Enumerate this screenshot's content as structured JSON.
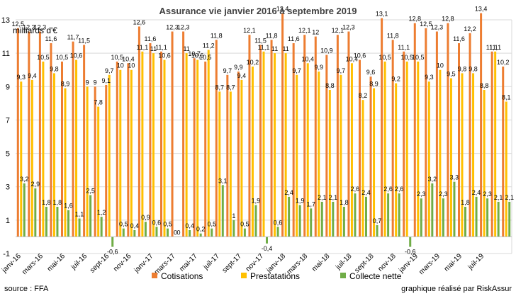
{
  "chart_data": {
    "type": "bar",
    "title": "Assurance vie janvier 2016 à septembre 2019",
    "ylabel": "milliards d'€",
    "ylim": [
      -1,
      13
    ],
    "yticks": [
      -1,
      1,
      3,
      5,
      7,
      9,
      11,
      13
    ],
    "grid": true,
    "legend_position": "bottom-center",
    "source": "source : FFA",
    "credit": "graphique réalisé par RiskAssur",
    "categories": [
      "janv-16",
      "févr-16",
      "mars-16",
      "avr-16",
      "mai-16",
      "juin-16",
      "juil-16",
      "août-16",
      "sept-16",
      "oct-16",
      "nov-16",
      "déc-16",
      "janv-17",
      "févr-17",
      "mars-17",
      "avr-17",
      "mai-17",
      "juin-17",
      "juil-17",
      "août-17",
      "sept-17",
      "oct-17",
      "nov-17",
      "déc-17",
      "janv-18",
      "févr-18",
      "mars-18",
      "avr-18",
      "mai-18",
      "juin-18",
      "juil-18",
      "août-18",
      "sept-18",
      "oct-18",
      "nov-18",
      "déc-18",
      "janv-19",
      "févr-19",
      "mars-19",
      "avr-19",
      "mai-19",
      "juin-19",
      "juil-19",
      "août-19",
      "sept-19"
    ],
    "x_tick_labels": [
      "janv-16",
      "mars-16",
      "mai-16",
      "juil-16",
      "sept-16",
      "nov-16",
      "janv-17",
      "mars-17",
      "mai-17",
      "juil-17",
      "sept-17",
      "nov-17",
      "janv-18",
      "mars-18",
      "mai-18",
      "juil-18",
      "sept-18",
      "nov-18",
      "janv-19",
      "mars-19",
      "mai-19",
      "juil-19"
    ],
    "series": [
      {
        "name": "Cotisations",
        "color": "#ED7D31",
        "values": [
          12.5,
          12.3,
          12.3,
          11.6,
          10.5,
          11.7,
          11.5,
          9,
          9.1,
          10.5,
          10.4,
          12.6,
          11.6,
          11.1,
          12.3,
          12.3,
          10.7,
          10.5,
          11.8,
          9.7,
          9.9,
          12.1,
          11.5,
          11.8,
          13.4,
          11.6,
          12.1,
          12,
          10.9,
          12.1,
          12.3,
          10.6,
          9.6,
          13.1,
          11.8,
          11.1,
          12.8,
          12.5,
          12.3,
          12.8,
          11.6,
          12.2,
          13.4,
          11.1,
          10.2
        ]
      },
      {
        "name": "Prestatations",
        "color": "#FFC000",
        "values": [
          9.3,
          9.4,
          10.5,
          9.8,
          8.9,
          10.6,
          9,
          7.8,
          9.7,
          10,
          10,
          11.1,
          11,
          10.6,
          0,
          11,
          10.6,
          11.2,
          8.7,
          8.7,
          9.4,
          10.2,
          11.1,
          11,
          11,
          9.7,
          10.4,
          9.9,
          8.8,
          9.7,
          10.4,
          8.2,
          8.9,
          10.5,
          9.2,
          10.5,
          10.5,
          9.3,
          10,
          9.5,
          9.8,
          9.8,
          8.8,
          11.1,
          8.1
        ]
      },
      {
        "name": "Collecte nette",
        "color": "#70AD47",
        "values": [
          3.2,
          2.9,
          1.8,
          1.8,
          1.6,
          1.1,
          2.5,
          1.2,
          -0.6,
          0.5,
          0.4,
          0.9,
          0.6,
          0.5,
          0,
          0.4,
          0.2,
          0.5,
          3.1,
          1,
          0.5,
          1.9,
          -0.4,
          0.6,
          2.4,
          1.9,
          1.7,
          2.1,
          2.1,
          1.8,
          2.6,
          2.4,
          0.7,
          2.6,
          2.6,
          -0.6,
          2.3,
          3.2,
          2.3,
          3.3,
          1.8,
          2.4,
          2.3,
          2.1,
          2.1
        ]
      }
    ]
  }
}
